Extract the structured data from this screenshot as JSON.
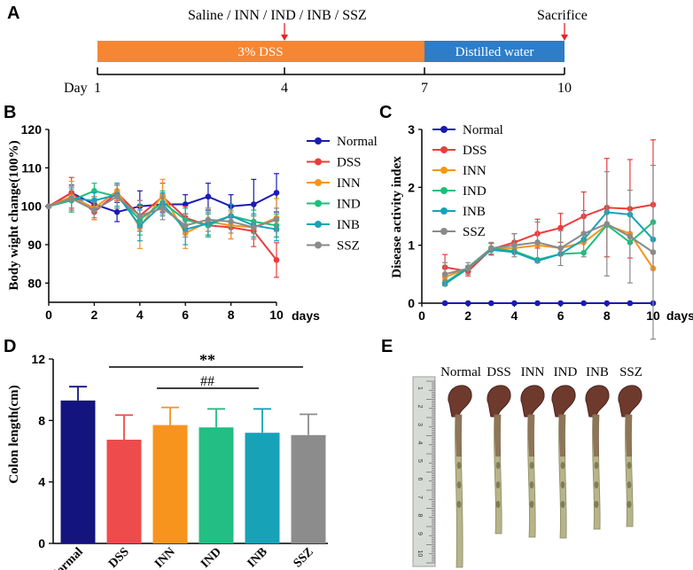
{
  "panels": {
    "A": {
      "label": "A",
      "treatment_label": "Saline / INN / IND / INB / SSZ",
      "sacrifice_label": "Sacrifice",
      "dss_label": "3% DSS",
      "water_label": "Distilled water",
      "day_label": "Day",
      "days": [
        "1",
        "4",
        "7",
        "10"
      ],
      "colors": {
        "dss": "#F58634",
        "water": "#2E7DC8",
        "arrow": "#E8232A"
      }
    },
    "B": {
      "label": "B"
    },
    "C": {
      "label": "C"
    },
    "D": {
      "label": "D",
      "sig1": "**",
      "sig2": "##"
    },
    "E": {
      "label": "E",
      "photo_labels": [
        "Normal",
        "DSS",
        "INN",
        "IND",
        "INB",
        "SSZ"
      ],
      "ruler_marks": [
        "1",
        "2",
        "3",
        "4",
        "5",
        "6",
        "7",
        "8",
        "9",
        "10",
        "11",
        "12"
      ]
    }
  },
  "chart_data": [
    {
      "id": "B",
      "type": "line",
      "title": "",
      "xlabel": "days",
      "ylabel": "Body wight change(100%)",
      "xlim": [
        0,
        10
      ],
      "ylim": [
        75,
        120
      ],
      "x_ticks": [
        0,
        2,
        4,
        6,
        8,
        10
      ],
      "y_ticks": [
        80,
        90,
        100,
        110,
        120
      ],
      "x": [
        0,
        1,
        2,
        3,
        4,
        5,
        6,
        7,
        8,
        9,
        10
      ],
      "series": [
        {
          "name": "Normal",
          "color": "#1B1BB3",
          "values": [
            100,
            103.5,
            100.5,
            98.5,
            100,
            100.5,
            100.5,
            102.5,
            100,
            100.5,
            103.5
          ],
          "errors": [
            0,
            2,
            2,
            2.5,
            4,
            2,
            2.5,
            3.5,
            3,
            6.5,
            5
          ]
        },
        {
          "name": "DSS",
          "color": "#EE3B3B",
          "values": [
            100,
            103.5,
            98.5,
            103.5,
            97.5,
            102.5,
            97,
            95,
            94.5,
            93.5,
            86
          ],
          "errors": [
            0,
            4,
            2,
            2,
            4,
            3.5,
            3,
            3,
            3,
            4,
            4.5
          ]
        },
        {
          "name": "INN",
          "color": "#F7941D",
          "values": [
            100,
            102.5,
            99.5,
            104,
            94.5,
            103,
            93,
            96,
            95,
            94.5,
            97
          ],
          "errors": [
            0,
            4,
            3,
            2,
            5.5,
            4,
            4,
            3.5,
            3.5,
            3,
            5
          ]
        },
        {
          "name": "IND",
          "color": "#1DBE7C",
          "values": [
            100,
            101.5,
            104,
            102.5,
            96.5,
            101,
            96.5,
            95,
            97.5,
            96,
            95
          ],
          "errors": [
            0,
            3,
            2,
            3,
            4,
            3,
            3,
            3,
            3,
            3,
            3
          ]
        },
        {
          "name": "INB",
          "color": "#17A2B8",
          "values": [
            100,
            102,
            101.5,
            103,
            95,
            100.5,
            94,
            95.5,
            97.5,
            95,
            94
          ],
          "errors": [
            0,
            3,
            2,
            3,
            4,
            3,
            4,
            3,
            3,
            3,
            3
          ]
        },
        {
          "name": "SSZ",
          "color": "#8A8A8A",
          "values": [
            100,
            102,
            99,
            102.5,
            97.5,
            99.5,
            95,
            96.5,
            96,
            94.5,
            96.5
          ],
          "errors": [
            0,
            3,
            2,
            3,
            4,
            3,
            3,
            3,
            3,
            3,
            3
          ]
        }
      ]
    },
    {
      "id": "C",
      "type": "line",
      "title": "",
      "xlabel": "days",
      "ylabel": "Disease activity index",
      "xlim": [
        0,
        10
      ],
      "ylim": [
        0,
        3
      ],
      "x_ticks": [
        0,
        2,
        4,
        6,
        8,
        10
      ],
      "y_ticks": [
        0,
        1,
        2,
        3
      ],
      "x": [
        1,
        2,
        3,
        4,
        5,
        6,
        7,
        8,
        9,
        10
      ],
      "series": [
        {
          "name": "Normal",
          "color": "#1B1BB3",
          "values": [
            0,
            0,
            0,
            0,
            0,
            0,
            0,
            0,
            0,
            0
          ],
          "errors": [
            0,
            0,
            0,
            0,
            0,
            0,
            0,
            0,
            0,
            0
          ]
        },
        {
          "name": "DSS",
          "color": "#EE3B3B",
          "values": [
            0.62,
            0.55,
            0.93,
            1.05,
            1.2,
            1.3,
            1.5,
            1.65,
            1.63,
            1.7
          ],
          "errors": [
            0.22,
            0.08,
            0.1,
            0.15,
            0.25,
            0.25,
            0.42,
            0.85,
            0.85,
            1.12
          ]
        },
        {
          "name": "INN",
          "color": "#F7941D",
          "values": [
            0.45,
            0.6,
            0.95,
            0.95,
            1.0,
            0.95,
            1.05,
            1.35,
            1.2,
            0.6
          ]
        },
        {
          "name": "IND",
          "color": "#1DBE7C",
          "values": [
            0.35,
            0.62,
            0.95,
            0.9,
            0.75,
            0.85,
            0.87,
            1.35,
            1.05,
            1.4
          ]
        },
        {
          "name": "INB",
          "color": "#17A2B8",
          "values": [
            0.33,
            0.6,
            0.92,
            0.88,
            0.73,
            0.85,
            1.1,
            1.57,
            1.53,
            1.1
          ]
        },
        {
          "name": "SSZ",
          "color": "#8A8A8A",
          "values": [
            0.5,
            0.6,
            0.95,
            1.0,
            1.05,
            0.95,
            1.2,
            1.37,
            1.15,
            0.88
          ],
          "errors": [
            0.2,
            0.1,
            0.1,
            0.2,
            0.35,
            0.3,
            0.4,
            0.9,
            0.8,
            1.5
          ]
        }
      ]
    },
    {
      "id": "D",
      "type": "bar",
      "title": "",
      "xlabel": "",
      "ylabel": "Colon length(cm)",
      "ylim": [
        0,
        12
      ],
      "y_ticks": [
        0,
        4,
        8,
        12
      ],
      "categories": [
        "Normal",
        "DSS",
        "INN",
        "IND",
        "INB",
        "SSZ"
      ],
      "values": [
        9.3,
        6.75,
        7.7,
        7.55,
        7.2,
        7.05
      ],
      "errors": [
        0.9,
        1.6,
        1.15,
        1.2,
        1.55,
        1.35
      ],
      "colors": [
        "#14147E",
        "#EE4C4C",
        "#F7941D",
        "#22BE83",
        "#17A2B8",
        "#8C8C8C"
      ]
    }
  ]
}
